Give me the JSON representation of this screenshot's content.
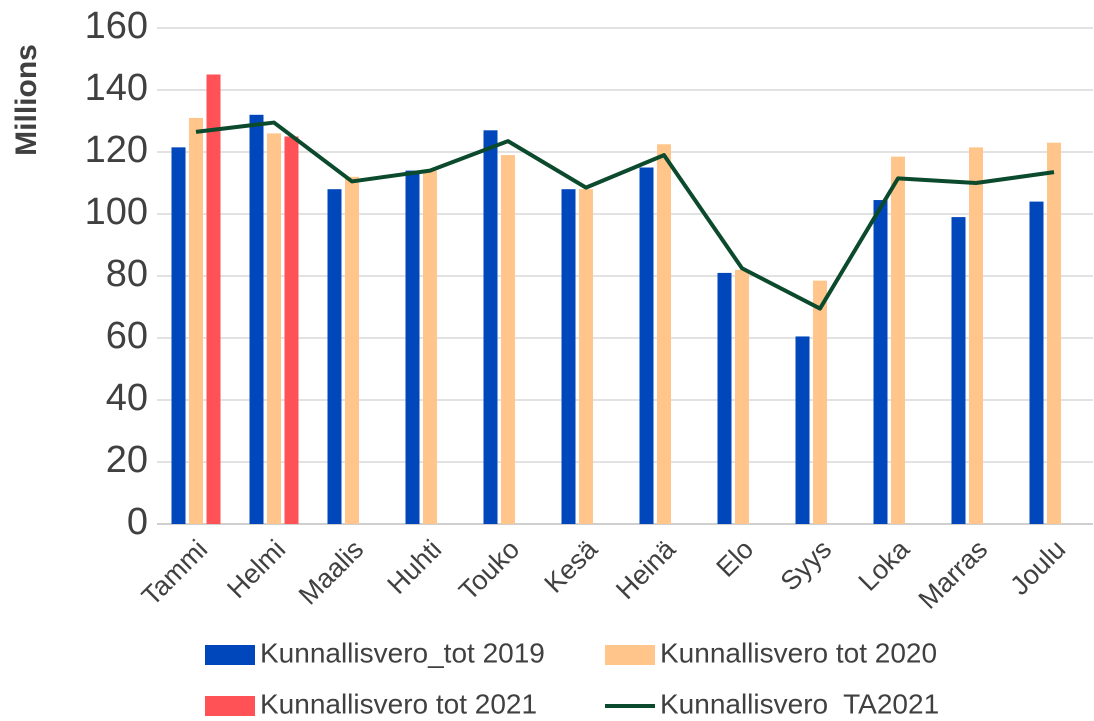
{
  "chart_data": {
    "type": "bar",
    "y_label": "Millions",
    "categories": [
      "Tammi",
      "Helmi",
      "Maalis",
      "Huhti",
      "Touko",
      "Kesä",
      "Heinä",
      "Elo",
      "Syys",
      "Loka",
      "Marras",
      "Joulu"
    ],
    "series": [
      {
        "name": "Kunnallisvero_tot 2019",
        "color": "#0047bb",
        "type": "bar",
        "values": [
          121.5,
          132,
          108,
          114,
          127,
          108,
          115,
          81,
          60.5,
          104.5,
          99,
          104
        ]
      },
      {
        "name": "Kunnallisvero tot 2020",
        "color": "#ffc58a",
        "type": "bar",
        "values": [
          131,
          126,
          112,
          114,
          119,
          108,
          122.5,
          82,
          78.5,
          118.5,
          121.5,
          123
        ]
      },
      {
        "name": "Kunnallisvero tot 2021",
        "color": "#ff5257",
        "type": "bar",
        "values": [
          145,
          125,
          null,
          null,
          null,
          null,
          null,
          null,
          null,
          null,
          null,
          null
        ]
      },
      {
        "name": "Kunnallisvero  TA2021",
        "color": "#0b4a2c",
        "type": "line",
        "values": [
          126.5,
          129.5,
          110.5,
          114,
          123.5,
          108.5,
          119,
          82.5,
          69.5,
          111.5,
          110,
          113.5
        ]
      }
    ],
    "ylim": [
      0,
      160
    ],
    "yticks": [
      0,
      20,
      40,
      60,
      80,
      100,
      120,
      140,
      160
    ],
    "grid": true
  }
}
